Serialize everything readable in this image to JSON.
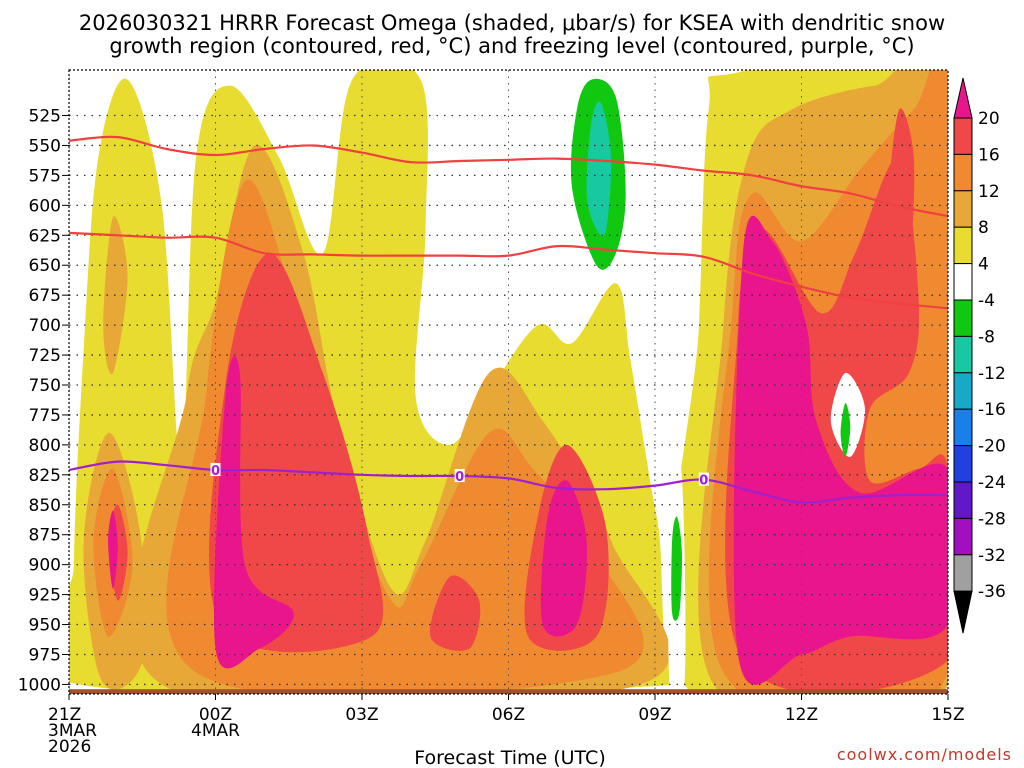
{
  "chart_data": {
    "type": "heatmap",
    "title_line1": "2026030321 HRRR Forecast Omega (shaded, μbar/s) for KSEA with dendritic snow",
    "title_line2": "growth region (contoured, red, °C) and freezing level (contoured, purple, °C)",
    "xlabel": "Forecast Time (UTC)",
    "ylabel": "Pressure (hPa)",
    "credit": "coolwx.com/models",
    "x_ticks": [
      {
        "hour": 0,
        "lines": [
          "21Z",
          "3MAR",
          "2026"
        ]
      },
      {
        "hour": 3,
        "lines": [
          "00Z",
          "4MAR"
        ]
      },
      {
        "hour": 6,
        "lines": [
          "03Z"
        ]
      },
      {
        "hour": 9,
        "lines": [
          "06Z"
        ]
      },
      {
        "hour": 12,
        "lines": [
          "09Z"
        ]
      },
      {
        "hour": 15,
        "lines": [
          "12Z"
        ]
      },
      {
        "hour": 18,
        "lines": [
          "15Z"
        ]
      }
    ],
    "xlim_hours": [
      0,
      18
    ],
    "y_ticks": [
      525,
      550,
      575,
      600,
      625,
      650,
      675,
      700,
      725,
      750,
      775,
      800,
      825,
      850,
      875,
      900,
      925,
      950,
      975,
      1000
    ],
    "ylim_hPa": [
      487,
      1008
    ],
    "colorbar": {
      "labels": [
        "20",
        "16",
        "12",
        "8",
        "4",
        "-4",
        "-8",
        "-12",
        "-16",
        "-20",
        "-24",
        "-28",
        "-32",
        "-36"
      ],
      "bins": [
        {
          "range": ">20",
          "color": "#e8158c"
        },
        {
          "range": "16 to 20",
          "color": "#f04848"
        },
        {
          "range": "12 to 16",
          "color": "#f08a30"
        },
        {
          "range": "8 to 12",
          "color": "#e8a838"
        },
        {
          "range": "4 to 8",
          "color": "#e8dc30"
        },
        {
          "range": "-4 to 4",
          "color": "#ffffff"
        },
        {
          "range": "-8 to -4",
          "color": "#10c810"
        },
        {
          "range": "-12 to -8",
          "color": "#18c8a0"
        },
        {
          "range": "-16 to -12",
          "color": "#18a8c8"
        },
        {
          "range": "-20 to -16",
          "color": "#1880e8"
        },
        {
          "range": "-24 to -20",
          "color": "#2040e0"
        },
        {
          "range": "-28 to -24",
          "color": "#6018c8"
        },
        {
          "range": "-32 to -28",
          "color": "#a010c0"
        },
        {
          "range": "-36 to -32",
          "color": "#a0a0a0"
        },
        {
          "range": "<-36",
          "color": "#000000"
        }
      ]
    },
    "dgz_upper": {
      "name": "-18 °C contour",
      "color": "#f04040",
      "points": [
        [
          0,
          546
        ],
        [
          1,
          543
        ],
        [
          2,
          553
        ],
        [
          3,
          558
        ],
        [
          4,
          553
        ],
        [
          5,
          550
        ],
        [
          6,
          556
        ],
        [
          7,
          564
        ],
        [
          8,
          563
        ],
        [
          9,
          562
        ],
        [
          10,
          561
        ],
        [
          11,
          563
        ],
        [
          12,
          566
        ],
        [
          13,
          571
        ],
        [
          14,
          575
        ],
        [
          15,
          584
        ],
        [
          16,
          590
        ],
        [
          17,
          601
        ],
        [
          18,
          609
        ]
      ]
    },
    "dgz_lower": {
      "name": "-12 °C contour",
      "color": "#f04040",
      "points": [
        [
          0,
          623
        ],
        [
          1,
          625
        ],
        [
          2,
          627
        ],
        [
          3,
          627
        ],
        [
          4,
          640
        ],
        [
          5,
          641
        ],
        [
          6,
          642
        ],
        [
          7,
          642
        ],
        [
          8,
          642
        ],
        [
          9,
          642
        ],
        [
          10,
          634
        ],
        [
          11,
          637
        ],
        [
          12,
          640
        ],
        [
          13,
          643
        ],
        [
          14,
          657
        ],
        [
          15,
          668
        ],
        [
          16,
          677
        ],
        [
          17,
          682
        ],
        [
          18,
          686
        ]
      ]
    },
    "freezing_level": {
      "name": "0 °C contour",
      "color": "#a020d0",
      "label": "0",
      "label_hours": [
        3,
        8,
        13
      ],
      "points": [
        [
          0,
          821
        ],
        [
          1,
          814
        ],
        [
          2,
          817
        ],
        [
          3,
          821
        ],
        [
          4,
          821
        ],
        [
          5,
          823
        ],
        [
          6,
          825
        ],
        [
          7,
          826
        ],
        [
          8,
          826
        ],
        [
          9,
          828
        ],
        [
          10,
          836
        ],
        [
          11,
          837
        ],
        [
          12,
          834
        ],
        [
          13,
          829
        ],
        [
          14,
          839
        ],
        [
          15,
          848
        ],
        [
          16,
          844
        ],
        [
          17,
          842
        ],
        [
          18,
          842
        ]
      ]
    },
    "terrain_surface_hPa": 1004,
    "omega_regions": [
      {
        "id": "r1",
        "value_band": "4 to 8",
        "polygon": [
          [
            0.2,
            1000
          ],
          [
            0.1,
            900
          ],
          [
            0.3,
            720
          ],
          [
            0.6,
            560
          ],
          [
            1.2,
            495
          ],
          [
            1.9,
            600
          ],
          [
            2.3,
            820
          ],
          [
            2.6,
            560
          ],
          [
            3.3,
            500
          ],
          [
            4.3,
            560
          ],
          [
            5.2,
            640
          ],
          [
            5.8,
            495
          ],
          [
            7.2,
            495
          ],
          [
            7.3,
            620
          ],
          [
            7.1,
            760
          ],
          [
            7.8,
            800
          ],
          [
            8.6,
            755
          ],
          [
            9.6,
            700
          ],
          [
            10.3,
            715
          ],
          [
            11.2,
            665
          ],
          [
            11.5,
            730
          ],
          [
            11.9,
            830
          ],
          [
            12.1,
            880
          ],
          [
            12.2,
            960
          ],
          [
            12.5,
            1000
          ]
        ]
      },
      {
        "id": "r2",
        "value_band": "4 to 8",
        "polygon": [
          [
            12.6,
            1000
          ],
          [
            12.9,
            700
          ],
          [
            13.1,
            520
          ],
          [
            13.6,
            490
          ],
          [
            18,
            490
          ],
          [
            18,
            1000
          ]
        ]
      },
      {
        "id": "r3",
        "value_band": "8 to 12",
        "polygon": [
          [
            0.6,
            990
          ],
          [
            0.3,
            880
          ],
          [
            0.8,
            790
          ],
          [
            1.4,
            860
          ],
          [
            1.6,
            960
          ],
          [
            1.2,
            1000
          ]
        ]
      },
      {
        "id": "r4",
        "value_band": "8 to 12",
        "polygon": [
          [
            1.9,
            1000
          ],
          [
            2.4,
            760
          ],
          [
            3,
            680
          ],
          [
            3.8,
            550
          ],
          [
            4.8,
            640
          ],
          [
            5.5,
            780
          ],
          [
            6.6,
            920
          ],
          [
            7.3,
            880
          ],
          [
            8.6,
            740
          ],
          [
            9.7,
            780
          ],
          [
            11.1,
            880
          ],
          [
            11.7,
            1000
          ]
        ]
      },
      {
        "id": "r5",
        "value_band": "8 to 12",
        "polygon": [
          [
            13.2,
            1000
          ],
          [
            13.4,
            700
          ],
          [
            13.9,
            560
          ],
          [
            14.8,
            520
          ],
          [
            16.5,
            500
          ],
          [
            18,
            500
          ],
          [
            18,
            1000
          ]
        ]
      },
      {
        "id": "r6",
        "value_band": "8 to 12",
        "polygon": [
          [
            0.7,
            700
          ],
          [
            0.9,
            610
          ],
          [
            1.2,
            660
          ],
          [
            0.9,
            740
          ]
        ]
      },
      {
        "id": "r7",
        "value_band": "12 to 16",
        "polygon": [
          [
            0.8,
            960
          ],
          [
            0.5,
            880
          ],
          [
            0.9,
            820
          ],
          [
            1.3,
            900
          ]
        ]
      },
      {
        "id": "r8",
        "value_band": "12 to 16",
        "polygon": [
          [
            2.6,
            990
          ],
          [
            2.8,
            760
          ],
          [
            3.6,
            580
          ],
          [
            4.6,
            680
          ],
          [
            5.4,
            800
          ],
          [
            6.6,
            930
          ],
          [
            7.2,
            900
          ],
          [
            8.6,
            790
          ],
          [
            9.5,
            820
          ],
          [
            10.8,
            890
          ],
          [
            11.2,
            990
          ]
        ]
      },
      {
        "id": "r9",
        "value_band": "12 to 16",
        "polygon": [
          [
            13.4,
            990
          ],
          [
            13.6,
            680
          ],
          [
            14,
            590
          ],
          [
            15,
            630
          ],
          [
            16.2,
            570
          ],
          [
            17.3,
            520
          ],
          [
            18,
            500
          ],
          [
            18,
            990
          ]
        ]
      },
      {
        "id": "r10",
        "value_band": "16 to 20",
        "polygon": [
          [
            1.0,
            930
          ],
          [
            0.8,
            880
          ],
          [
            1.0,
            850
          ],
          [
            1.2,
            890
          ]
        ]
      },
      {
        "id": "r11",
        "value_band": "16 to 20",
        "polygon": [
          [
            3.1,
            950
          ],
          [
            3.2,
            750
          ],
          [
            4.1,
            640
          ],
          [
            5.2,
            740
          ],
          [
            6.1,
            870
          ],
          [
            6.2,
            960
          ]
        ]
      },
      {
        "id": "r12",
        "value_band": "16 to 20",
        "polygon": [
          [
            7.4,
            960
          ],
          [
            7.8,
            910
          ],
          [
            8.4,
            930
          ],
          [
            8.2,
            970
          ]
        ]
      },
      {
        "id": "r13",
        "value_band": "16 to 20",
        "polygon": [
          [
            9.4,
            960
          ],
          [
            9.6,
            860
          ],
          [
            10.2,
            800
          ],
          [
            11.0,
            870
          ],
          [
            10.8,
            960
          ]
        ]
      },
      {
        "id": "r14",
        "value_band": "16 to 20",
        "polygon": [
          [
            13.8,
            980
          ],
          [
            13.7,
            700
          ],
          [
            14.2,
            620
          ],
          [
            15.4,
            690
          ],
          [
            16.1,
            640
          ],
          [
            17.0,
            560
          ],
          [
            17.4,
            680
          ],
          [
            17.2,
            740
          ],
          [
            16.4,
            770
          ],
          [
            16.4,
            830
          ],
          [
            17.4,
            820
          ],
          [
            18,
            820
          ],
          [
            18,
            980
          ]
        ]
      },
      {
        "id": "r15",
        "value_band": ">20",
        "polygon": [
          [
            0.9,
            920
          ],
          [
            0.8,
            880
          ],
          [
            0.9,
            855
          ],
          [
            1.0,
            885
          ]
        ]
      },
      {
        "id": "r16",
        "value_band": ">20",
        "polygon": [
          [
            3.0,
            970
          ],
          [
            3.2,
            760
          ],
          [
            3.5,
            740
          ],
          [
            3.6,
            900
          ],
          [
            4.6,
            940
          ],
          [
            3.9,
            970
          ]
        ]
      },
      {
        "id": "r17",
        "value_band": ">20",
        "polygon": [
          [
            9.7,
            950
          ],
          [
            9.8,
            860
          ],
          [
            10.2,
            830
          ],
          [
            10.6,
            880
          ],
          [
            10.4,
            950
          ]
        ]
      },
      {
        "id": "r18",
        "value_band": ">20",
        "polygon": [
          [
            13.7,
            975
          ],
          [
            13.8,
            640
          ],
          [
            14.4,
            630
          ],
          [
            15.1,
            700
          ],
          [
            15.3,
            780
          ],
          [
            16.2,
            840
          ],
          [
            18,
            820
          ],
          [
            18,
            950
          ],
          [
            16,
            960
          ],
          [
            15,
            975
          ]
        ]
      },
      {
        "id": "r19",
        "value_band": "16 to 20",
        "polygon": [
          [
            16.8,
            600
          ],
          [
            17.0,
            520
          ],
          [
            17.3,
            560
          ],
          [
            17.2,
            640
          ]
        ]
      },
      {
        "id": "r20",
        "value_band": "-4 to 4",
        "polygon": [
          [
            15.6,
            780
          ],
          [
            15.9,
            740
          ],
          [
            16.3,
            770
          ],
          [
            16.0,
            810
          ]
        ]
      },
      {
        "id": "r21",
        "value_band": "-4 to 4",
        "polygon": [
          [
            12.3,
            1000
          ],
          [
            12.3,
            850
          ],
          [
            12.5,
            810
          ],
          [
            12.6,
            880
          ],
          [
            12.6,
            1000
          ]
        ]
      },
      {
        "id": "r22",
        "value_band": "-8 to -4",
        "polygon": [
          [
            10.3,
            585
          ],
          [
            10.4,
            520
          ],
          [
            10.7,
            495
          ],
          [
            11.2,
            510
          ],
          [
            11.4,
            590
          ],
          [
            11.2,
            640
          ],
          [
            10.8,
            650
          ]
        ]
      },
      {
        "id": "r23",
        "value_band": "-12 to -8",
        "polygon": [
          [
            10.6,
            590
          ],
          [
            10.7,
            530
          ],
          [
            10.9,
            515
          ],
          [
            11.1,
            560
          ],
          [
            11.0,
            620
          ],
          [
            10.8,
            620
          ]
        ]
      },
      {
        "id": "r24",
        "value_band": "-8 to -4",
        "polygon": [
          [
            12.35,
            940
          ],
          [
            12.35,
            880
          ],
          [
            12.45,
            860
          ],
          [
            12.55,
            890
          ],
          [
            12.5,
            940
          ]
        ]
      },
      {
        "id": "r25",
        "value_band": "-8 to -4",
        "polygon": [
          [
            15.8,
            790
          ],
          [
            15.9,
            765
          ],
          [
            16.0,
            785
          ],
          [
            15.9,
            810
          ]
        ]
      }
    ]
  }
}
